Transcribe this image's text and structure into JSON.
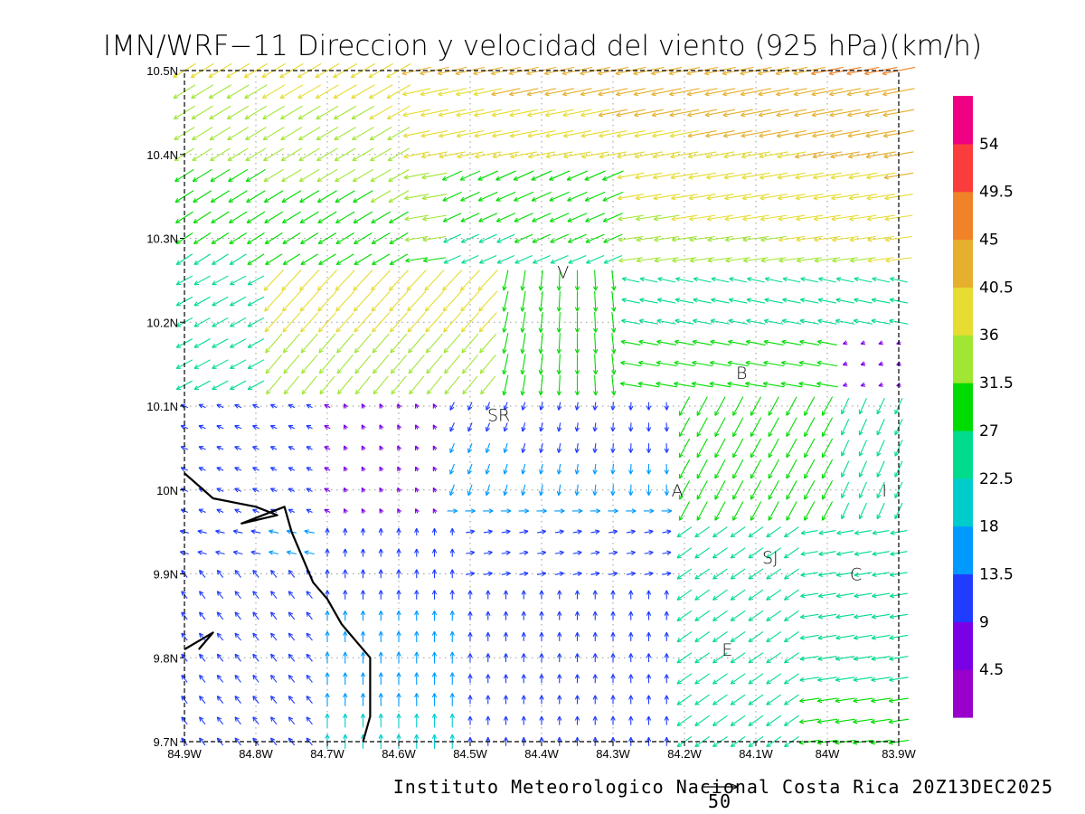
{
  "title": "IMN/WRF−11 Direccion y velocidad del viento (925 hPa)(km/h)",
  "credit": "Instituto Meteorologico Nacional Costa Rica 20Z13DEC2025",
  "reference_vector": {
    "label": "50",
    "speed": 50
  },
  "map": {
    "lon_range": [
      -84.9,
      -83.9
    ],
    "lat_range": [
      9.7,
      10.5
    ],
    "grid": true,
    "x_ticks": [
      {
        "v": -84.9,
        "label": "84.9W"
      },
      {
        "v": -84.8,
        "label": "84.8W"
      },
      {
        "v": -84.7,
        "label": "84.7W"
      },
      {
        "v": -84.6,
        "label": "84.6W"
      },
      {
        "v": -84.5,
        "label": "84.5W"
      },
      {
        "v": -84.4,
        "label": "84.4W"
      },
      {
        "v": -84.3,
        "label": "84.3W"
      },
      {
        "v": -84.2,
        "label": "84.2W"
      },
      {
        "v": -84.1,
        "label": "84.1W"
      },
      {
        "v": -84.0,
        "label": "84W"
      },
      {
        "v": -83.9,
        "label": "83.9W"
      }
    ],
    "y_ticks": [
      {
        "v": 9.7,
        "label": "9.7N"
      },
      {
        "v": 9.8,
        "label": "9.8N"
      },
      {
        "v": 9.9,
        "label": "9.9N"
      },
      {
        "v": 10.0,
        "label": "10N"
      },
      {
        "v": 10.1,
        "label": "10.1N"
      },
      {
        "v": 10.2,
        "label": "10.2N"
      },
      {
        "v": 10.3,
        "label": "10.3N"
      },
      {
        "v": 10.4,
        "label": "10.4N"
      },
      {
        "v": 10.5,
        "label": "10.5N"
      }
    ],
    "places": [
      {
        "label": "V",
        "lon": -84.37,
        "lat": 10.26
      },
      {
        "label": "SR",
        "lon": -84.46,
        "lat": 10.09
      },
      {
        "label": "B",
        "lon": -84.12,
        "lat": 10.14
      },
      {
        "label": "A",
        "lon": -84.21,
        "lat": 10.0
      },
      {
        "label": "I",
        "lon": -83.92,
        "lat": 10.0
      },
      {
        "label": "SJ",
        "lon": -84.08,
        "lat": 9.92
      },
      {
        "label": "C",
        "lon": -83.96,
        "lat": 9.9
      },
      {
        "label": "E",
        "lon": -84.14,
        "lat": 9.81
      }
    ],
    "coastline": [
      [
        [
          -84.9,
          10.02
        ],
        [
          -84.86,
          9.99
        ],
        [
          -84.8,
          9.98
        ],
        [
          -84.77,
          9.97
        ],
        [
          -84.82,
          9.96
        ],
        [
          -84.76,
          9.98
        ],
        [
          -84.75,
          9.95
        ],
        [
          -84.73,
          9.91
        ],
        [
          -84.72,
          9.89
        ],
        [
          -84.7,
          9.87
        ],
        [
          -84.68,
          9.84
        ],
        [
          -84.66,
          9.82
        ],
        [
          -84.64,
          9.8
        ],
        [
          -84.64,
          9.77
        ],
        [
          -84.64,
          9.73
        ],
        [
          -84.65,
          9.7
        ]
      ],
      [
        [
          -84.9,
          9.81
        ],
        [
          -84.88,
          9.82
        ],
        [
          -84.86,
          9.83
        ],
        [
          -84.88,
          9.81
        ]
      ]
    ]
  },
  "colorbar": {
    "colors": [
      "#9900cc",
      "#7a00e6",
      "#1f3cff",
      "#0099ff",
      "#00cccc",
      "#00dc8c",
      "#00dc00",
      "#a0e632",
      "#e6dc32",
      "#e6af2d",
      "#f08228",
      "#fa3c3c",
      "#f00082"
    ],
    "labels": [
      "4.5",
      "9",
      "13.5",
      "18",
      "22.5",
      "27",
      "31.5",
      "36",
      "40.5",
      "45",
      "49.5",
      "54"
    ]
  }
}
